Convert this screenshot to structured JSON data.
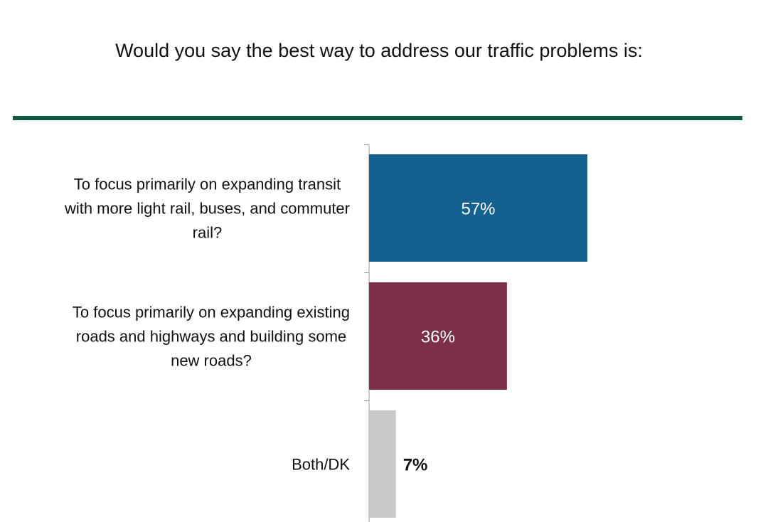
{
  "header": {
    "accent_color": "#0f5a3e"
  },
  "chart_data": {
    "type": "bar",
    "orientation": "horizontal",
    "title": "Would you say the best way to address our traffic problems is:",
    "categories": [
      [
        "To focus primarily on expanding transit",
        "with more light rail, buses, and commuter",
        "rail?"
      ],
      [
        "To focus primarily on expanding existing",
        "roads and highways and building some",
        "new roads?"
      ],
      [
        "Both/DK"
      ]
    ],
    "values": [
      57,
      36,
      7
    ],
    "value_labels": [
      "57%",
      "36%",
      "7%"
    ],
    "colors": [
      "#136190",
      "#7c2f4b",
      "#c8c8c8"
    ],
    "xlim": [
      0,
      100
    ],
    "grid": false,
    "legend": "none"
  }
}
